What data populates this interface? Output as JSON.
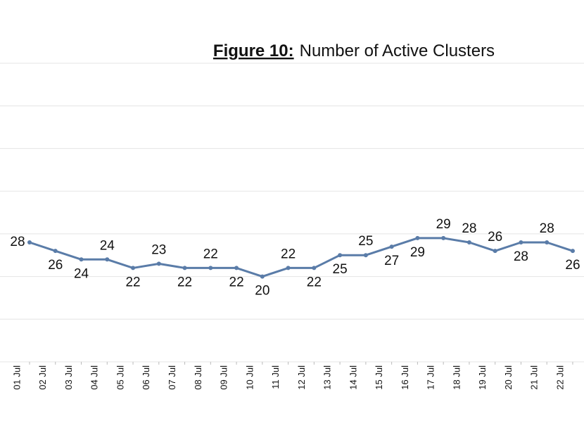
{
  "chart_data": {
    "type": "line",
    "title_prefix": "Figure 10:",
    "title": "Number of Active Clusters",
    "categories": [
      "01 Jul",
      "02 Jul",
      "03 Jul",
      "04 Jul",
      "05 Jul",
      "06 Jul",
      "07 Jul",
      "08 Jul",
      "09 Jul",
      "10 Jul",
      "11 Jul",
      "12 Jul",
      "13 Jul",
      "14 Jul",
      "15 Jul",
      "16 Jul",
      "17 Jul",
      "18 Jul",
      "19 Jul",
      "20 Jul",
      "21 Jul",
      "22 Jul"
    ],
    "values": [
      28,
      26,
      24,
      24,
      22,
      23,
      22,
      22,
      22,
      20,
      22,
      22,
      25,
      25,
      27,
      29,
      29,
      28,
      26,
      28,
      28,
      26
    ],
    "color": "#5a7ca8",
    "ylim": [
      0,
      70
    ],
    "yticks": [
      0,
      10,
      20,
      30,
      40,
      50,
      60,
      70
    ],
    "grid": true
  }
}
